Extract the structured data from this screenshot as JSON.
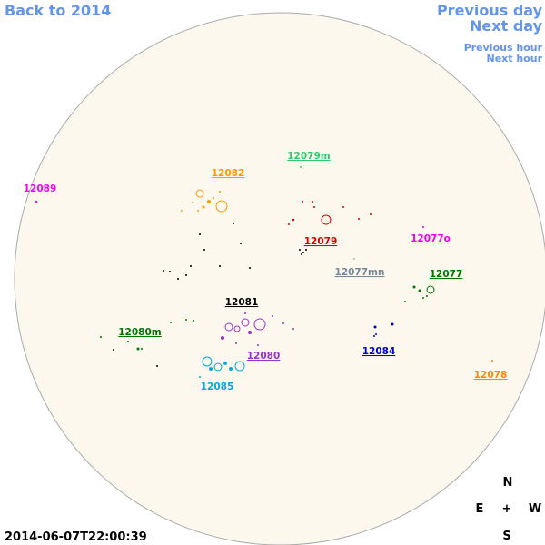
{
  "navigation": {
    "back": "Back to 2014",
    "previous_day": "Previous day",
    "next_day": "Next day",
    "previous_hour": "Previous hour",
    "next_hour": "Next hour"
  },
  "regions": [
    {
      "label": "12079m",
      "color": "#2ecc71"
    },
    {
      "label": "12082",
      "color": "#ff9900"
    },
    {
      "label": "12089",
      "color": "#ff00ff"
    },
    {
      "label": "12079",
      "color": "#dd0000"
    },
    {
      "label": "12077o",
      "color": "#ee00ee"
    },
    {
      "label": "12077mn",
      "color": "#778899"
    },
    {
      "label": "12077",
      "color": "#007700"
    },
    {
      "label": "12081",
      "color": "#000000"
    },
    {
      "label": "12080m",
      "color": "#007700"
    },
    {
      "label": "12080",
      "color": "#9933cc"
    },
    {
      "label": "12084",
      "color": "#0000cc"
    },
    {
      "label": "12085",
      "color": "#00aadd"
    },
    {
      "label": "12078",
      "color": "#ff8800"
    }
  ],
  "compass": {
    "north": "N",
    "east": "E",
    "center": "+",
    "west": "W",
    "south": "S"
  },
  "timestamp": "2014-06-07T22:00:39"
}
